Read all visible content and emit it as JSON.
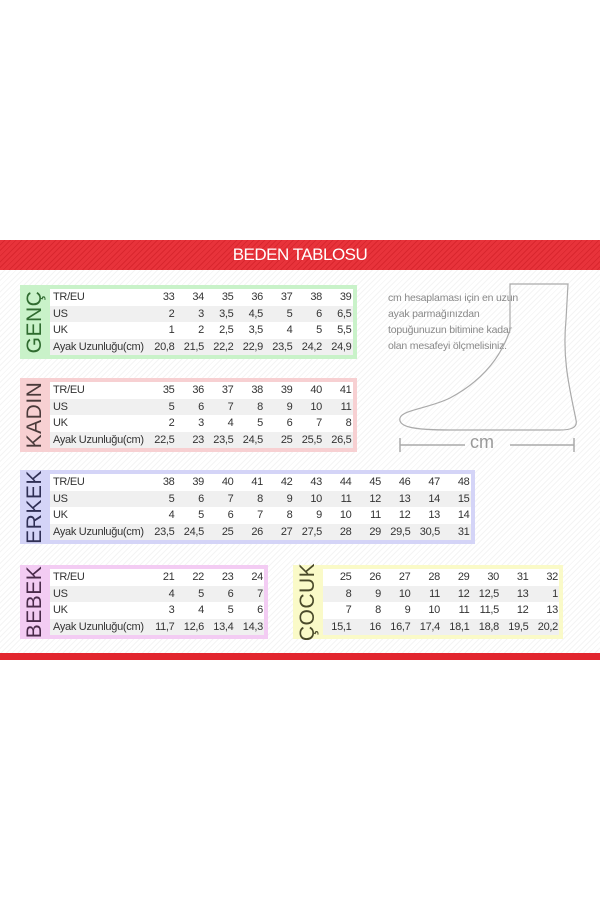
{
  "title": "BEDEN TABLOSU",
  "colors": {
    "banner": "#e8333b",
    "genc": "#c9f2c9",
    "kadin": "#f7d0d2",
    "erkek": "#d4d4f7",
    "bebek": "#f3ccf3",
    "cocuk": "#fafac8"
  },
  "note": "cm hesaplaması için en uzun ayak parmağınızdan topuğunuzun bitimine kadar olan mesafeyi ölçmelisiniz.",
  "cm_label": "cm",
  "foot_icon": "foot-outline",
  "tables": [
    {
      "name": "GENÇ",
      "rows": [
        {
          "label": "TR/EU",
          "values": [
            "33",
            "34",
            "35",
            "36",
            "37",
            "38",
            "39"
          ]
        },
        {
          "label": "US",
          "values": [
            "2",
            "3",
            "3,5",
            "4,5",
            "5",
            "6",
            "6,5"
          ]
        },
        {
          "label": "UK",
          "values": [
            "1",
            "2",
            "2,5",
            "3,5",
            "4",
            "5",
            "5,5"
          ]
        },
        {
          "label": "Ayak Uzunluğu(cm)",
          "values": [
            "20,8",
            "21,5",
            "22,2",
            "22,9",
            "23,5",
            "24,2",
            "24,9"
          ]
        }
      ]
    },
    {
      "name": "KADIN",
      "rows": [
        {
          "label": "TR/EU",
          "values": [
            "35",
            "36",
            "37",
            "38",
            "39",
            "40",
            "41"
          ]
        },
        {
          "label": "US",
          "values": [
            "5",
            "6",
            "7",
            "8",
            "9",
            "10",
            "11"
          ]
        },
        {
          "label": "UK",
          "values": [
            "2",
            "3",
            "4",
            "5",
            "6",
            "7",
            "8"
          ]
        },
        {
          "label": "Ayak Uzunluğu(cm)",
          "values": [
            "22,5",
            "23",
            "23,5",
            "24,5",
            "25",
            "25,5",
            "26,5"
          ]
        }
      ]
    },
    {
      "name": "ERKEK",
      "rows": [
        {
          "label": "TR/EU",
          "values": [
            "38",
            "39",
            "40",
            "41",
            "42",
            "43",
            "44",
            "45",
            "46",
            "47",
            "48"
          ]
        },
        {
          "label": "US",
          "values": [
            "5",
            "6",
            "7",
            "8",
            "9",
            "10",
            "11",
            "12",
            "13",
            "14",
            "15"
          ]
        },
        {
          "label": "UK",
          "values": [
            "4",
            "5",
            "6",
            "7",
            "8",
            "9",
            "10",
            "11",
            "12",
            "13",
            "14"
          ]
        },
        {
          "label": "Ayak Uzunluğu(cm)",
          "values": [
            "23,5",
            "24,5",
            "25",
            "26",
            "27",
            "27,5",
            "28",
            "29",
            "29,5",
            "30,5",
            "31"
          ]
        }
      ]
    },
    {
      "name": "BEBEK",
      "rows": [
        {
          "label": "TR/EU",
          "values": [
            "21",
            "22",
            "23",
            "24"
          ]
        },
        {
          "label": "US",
          "values": [
            "4",
            "5",
            "6",
            "7"
          ]
        },
        {
          "label": "UK",
          "values": [
            "3",
            "4",
            "5",
            "6"
          ]
        },
        {
          "label": "Ayak Uzunluğu(cm)",
          "values": [
            "11,7",
            "12,6",
            "13,4",
            "14,3"
          ]
        }
      ]
    },
    {
      "name": "ÇOCUK",
      "rows": [
        {
          "values": [
            "25",
            "26",
            "27",
            "28",
            "29",
            "30",
            "31",
            "32"
          ]
        },
        {
          "values": [
            "8",
            "9",
            "10",
            "11",
            "12",
            "12,5",
            "13",
            "1"
          ]
        },
        {
          "values": [
            "7",
            "8",
            "9",
            "10",
            "11",
            "11,5",
            "12",
            "13"
          ]
        },
        {
          "values": [
            "15,1",
            "16",
            "16,7",
            "17,4",
            "18,1",
            "18,8",
            "19,5",
            "20,2"
          ]
        }
      ]
    }
  ]
}
